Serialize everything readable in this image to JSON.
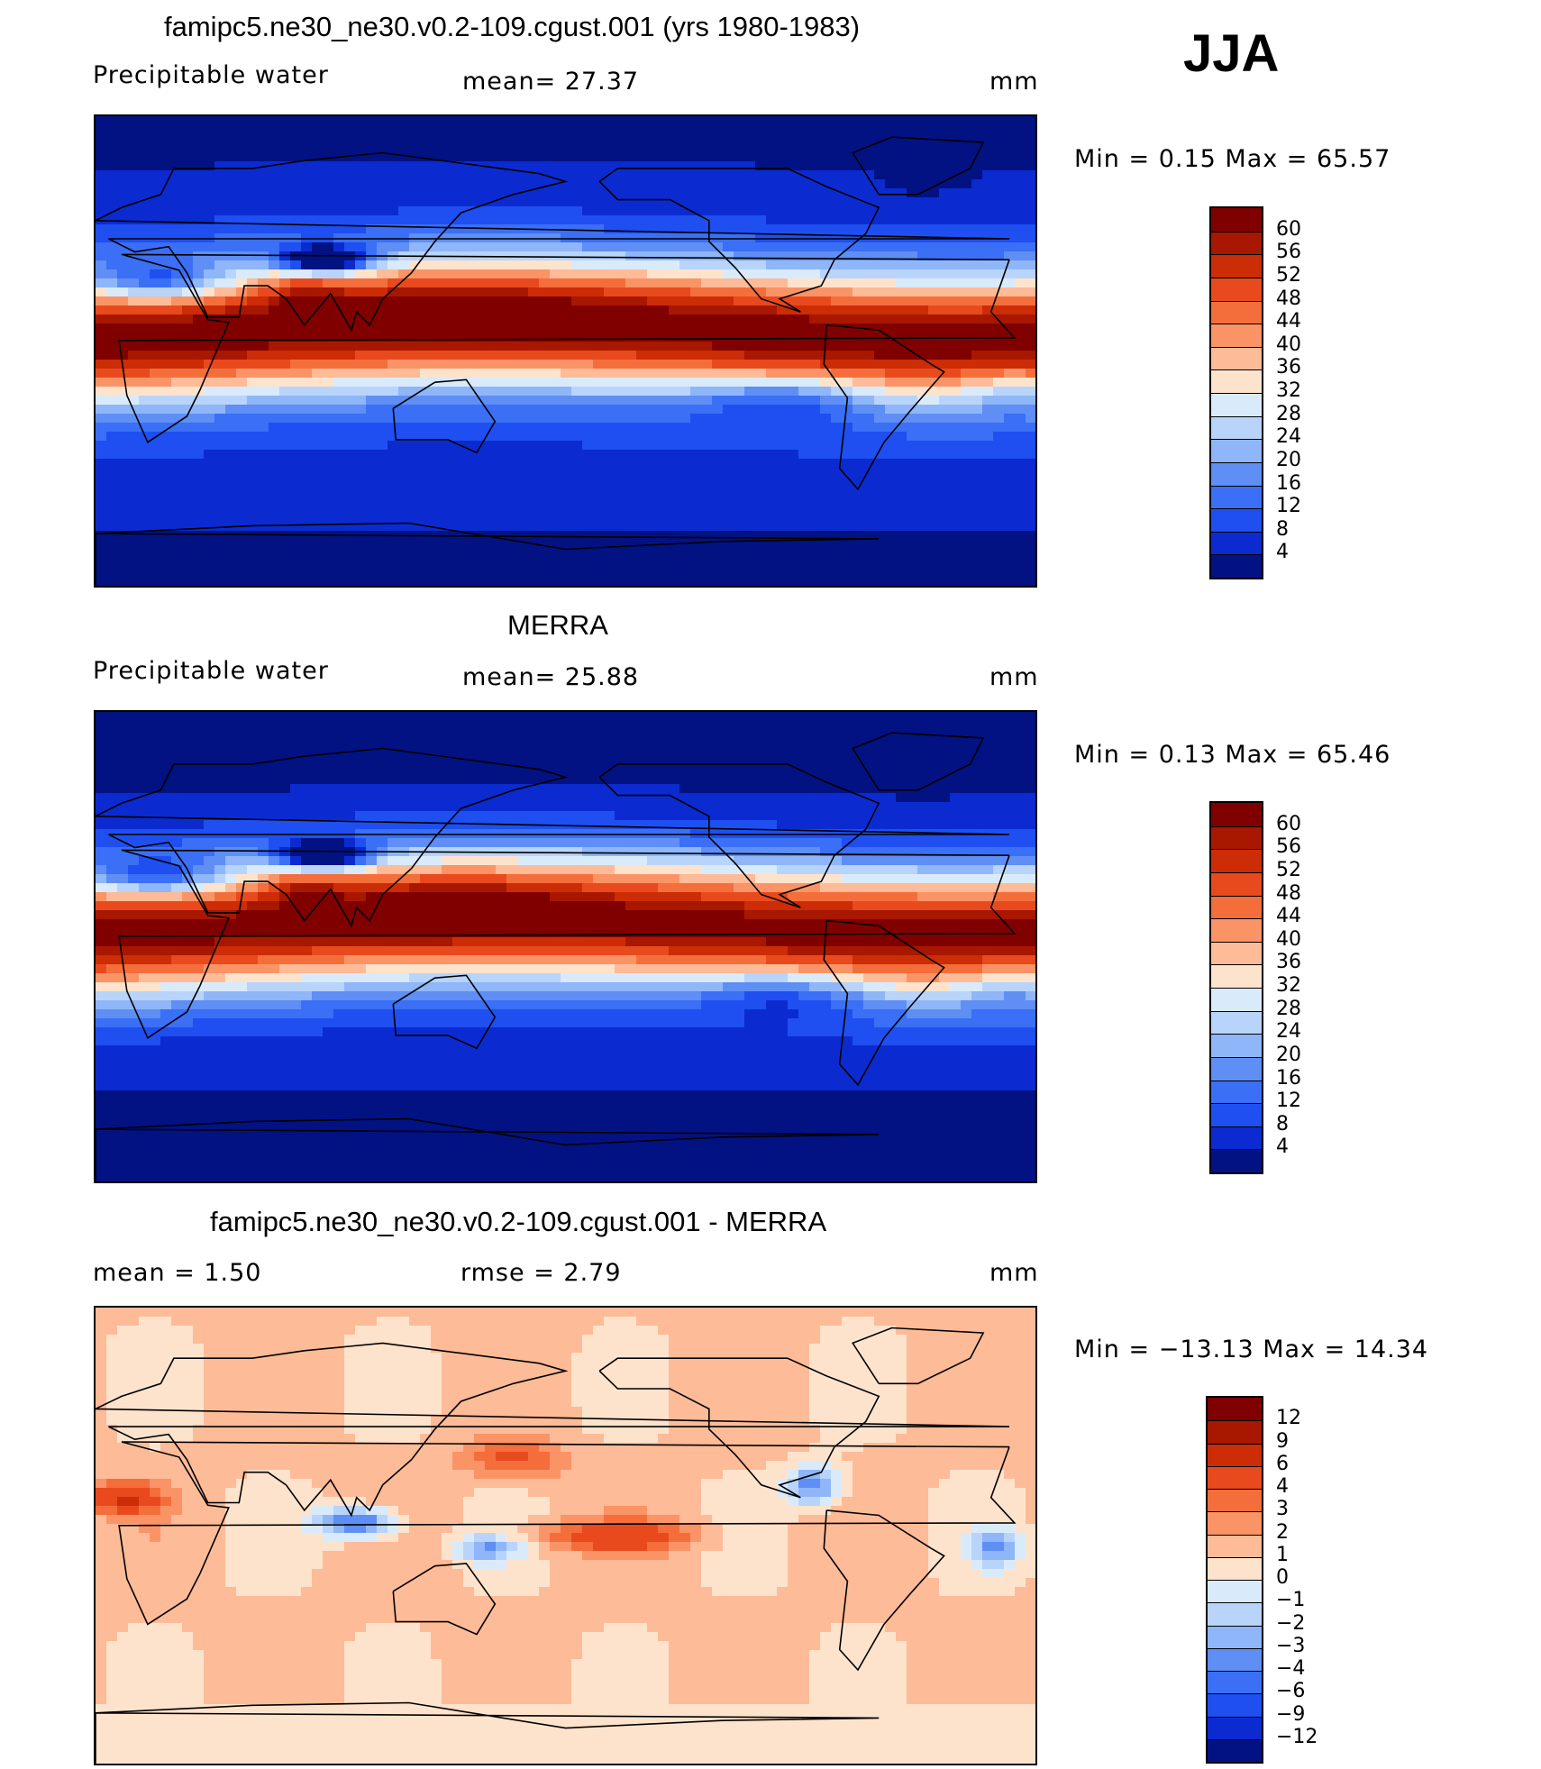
{
  "season": "JJA",
  "panels": [
    {
      "title": "famipc5.ne30_ne30.v0.2-109.cgust.001 (yrs 1980-1983)",
      "left": "Precipitable  water",
      "mid": "mean=   27.37",
      "units": "mm",
      "minmax": "Min  =     0.15  Max  =    65.57",
      "palette": "full",
      "labels": [
        "60",
        "56",
        "52",
        "48",
        "44",
        "40",
        "36",
        "32",
        "28",
        "24",
        "20",
        "16",
        "12",
        "8",
        "4"
      ]
    },
    {
      "title": "MERRA",
      "left": "Precipitable  water",
      "mid": "mean=   25.88",
      "units": "mm",
      "minmax": "Min  =     0.13  Max  =    65.46",
      "palette": "full",
      "labels": [
        "60",
        "56",
        "52",
        "48",
        "44",
        "40",
        "36",
        "32",
        "28",
        "24",
        "20",
        "16",
        "12",
        "8",
        "4"
      ]
    },
    {
      "title": "famipc5.ne30_ne30.v0.2-109.cgust.001 - MERRA",
      "left": "mean  =     1.50",
      "mid": "rmse  =     2.79",
      "units": "mm",
      "minmax": "Min  = −13.13  Max  =    14.34",
      "palette": "diff",
      "labels": [
        "12",
        "9",
        "6",
        "4",
        "3",
        "2",
        "1",
        "0",
        "−1",
        "−2",
        "−3",
        "−4",
        "−6",
        "−9",
        "−12"
      ]
    }
  ],
  "colors": {
    "full": [
      "#800000",
      "#a81700",
      "#cc2c06",
      "#e84a1e",
      "#f46e3c",
      "#fa9466",
      "#fdbb98",
      "#fde3cc",
      "#d9ebfb",
      "#b8d4fa",
      "#8fb6f8",
      "#5f8ef5",
      "#3a6ff6",
      "#1f4ff0",
      "#0b2bd0",
      "#021283"
    ],
    "diff": [
      "#800000",
      "#a81700",
      "#cc2c06",
      "#e84a1e",
      "#f46e3c",
      "#fa9466",
      "#fdbb98",
      "#fde3cc",
      "#d9ebfb",
      "#b8d4fa",
      "#8fb6f8",
      "#5f8ef5",
      "#3a6ff6",
      "#1f4ff0",
      "#0b2bd0",
      "#021283"
    ]
  }
}
